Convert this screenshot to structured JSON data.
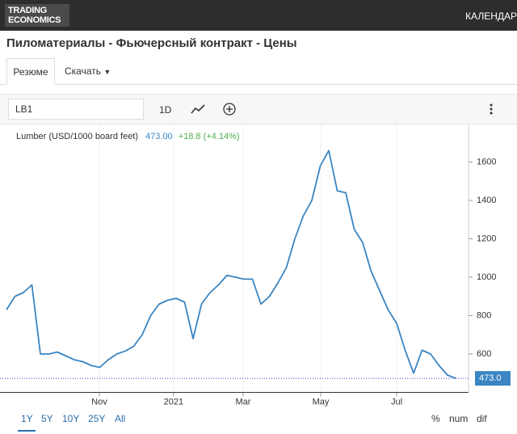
{
  "header": {
    "logo": [
      "TRADING",
      "ECONOMICS"
    ],
    "nav": "КАЛЕНДАР"
  },
  "title": "Пиломатериалы - Фьючерсный контракт - Цены",
  "tabs": [
    "Резюме",
    "Скачать"
  ],
  "toolbar": {
    "symbol": "LB1",
    "interval": "1D"
  },
  "chart_data": {
    "type": "line",
    "price": "473.00",
    "change": "+18.8 (+4.14%)",
    "series": [
      {
        "name": "Lumber (USD/1000 board feet)",
        "color": "#3a85c2",
        "values": [
          830,
          900,
          920,
          960,
          600,
          600,
          610,
          590,
          570,
          560,
          540,
          530,
          570,
          600,
          615,
          640,
          700,
          800,
          860,
          880,
          890,
          870,
          680,
          860,
          920,
          960,
          1010,
          1000,
          990,
          990,
          860,
          900,
          970,
          1050,
          1200,
          1320,
          1400,
          1580,
          1660,
          1450,
          1440,
          1250,
          1180,
          1030,
          930,
          830,
          760,
          620,
          500,
          620,
          600,
          540,
          490,
          473
        ]
      }
    ],
    "xlim": [
      0,
      53
    ],
    "xticks": [
      {
        "value": 10.95,
        "label": "Nov"
      },
      {
        "value": 19.7,
        "label": "2021"
      },
      {
        "value": 27.9,
        "label": "Mar"
      },
      {
        "value": 37.05,
        "label": "May"
      },
      {
        "value": 46.0,
        "label": "Jul"
      }
    ],
    "ylim": [
      400,
      1800
    ],
    "yticks": [
      600,
      800,
      1000,
      1200,
      1400,
      1600
    ],
    "last_value": {
      "value": 473,
      "label": "473.0"
    },
    "grid": true
  },
  "ranges": [
    "1Y",
    "5Y",
    "10Y",
    "25Y",
    "All"
  ],
  "modes": [
    "%",
    "num",
    "dif"
  ]
}
